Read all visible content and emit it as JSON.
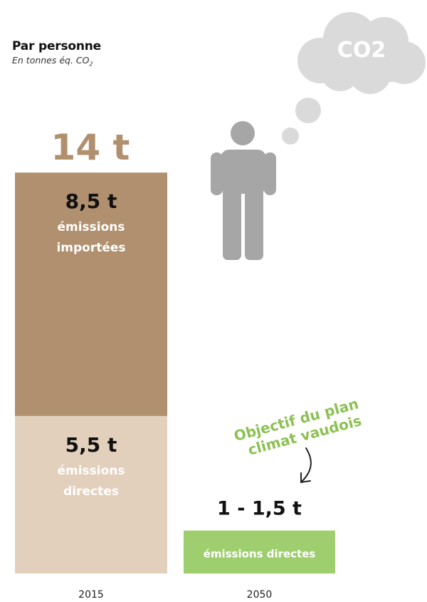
{
  "heading": {
    "title": "Par personne",
    "subtitle": "En tonnes éq. CO",
    "subtitle_sub": "2"
  },
  "cloud_label": "CO2",
  "chart_data": {
    "type": "bar",
    "stacked": true,
    "categories": [
      "2015",
      "2050"
    ],
    "series": [
      {
        "category": "2015",
        "total_label": "14 t",
        "segments": [
          {
            "value": 5.5,
            "value_label": "5,5 t",
            "label_lines": [
              "émissions",
              "directes"
            ],
            "color": "#e3d0bc"
          },
          {
            "value": 8.5,
            "value_label": "8,5 t",
            "label_lines": [
              "émissions",
              "importées"
            ],
            "color": "#b0906f"
          }
        ]
      },
      {
        "category": "2050",
        "segments": [
          {
            "value": 1.5,
            "value_label": "1 - 1,5 t",
            "label_lines": [
              "émissions directes"
            ],
            "color": "#9fce6e"
          }
        ]
      }
    ],
    "annotation": {
      "lines": [
        "Objectif du plan",
        "climat vaudois"
      ],
      "color": "#8cc152"
    },
    "colors": {
      "total_label": "#b0906f",
      "person": "#a6a6a6",
      "cloud": "#dadada"
    }
  }
}
